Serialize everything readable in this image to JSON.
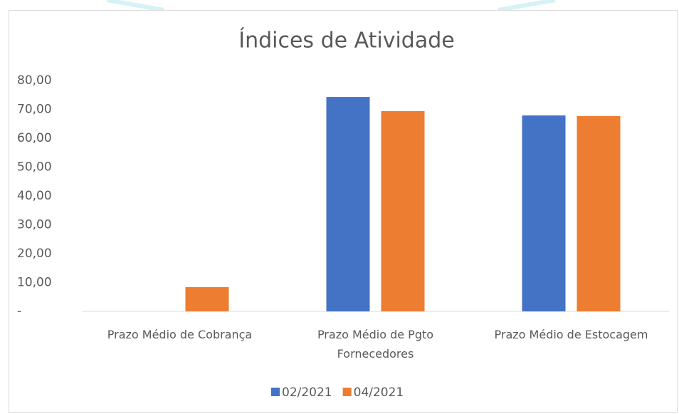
{
  "chart_data": {
    "type": "bar",
    "title": "Índices de Atividade",
    "categories": [
      "Prazo Médio de Cobrança",
      "Prazo Médio de Pgto Fornecedores",
      "Prazo Médio de Estocagem"
    ],
    "series": [
      {
        "name": "02/2021",
        "color": "#4472c4",
        "values": [
          0,
          74.3,
          67.9
        ]
      },
      {
        "name": "04/2021",
        "color": "#ed7d31",
        "values": [
          8.4,
          69.4,
          67.7
        ]
      }
    ],
    "ylim": [
      0,
      80
    ],
    "yticks": [
      {
        "value": 0,
        "label": "-"
      },
      {
        "value": 10,
        "label": "10,00"
      },
      {
        "value": 20,
        "label": "20,00"
      },
      {
        "value": 30,
        "label": "30,00"
      },
      {
        "value": 40,
        "label": "40,00"
      },
      {
        "value": 50,
        "label": "50,00"
      },
      {
        "value": 60,
        "label": "60,00"
      },
      {
        "value": 70,
        "label": "70,00"
      },
      {
        "value": 80,
        "label": "80,00"
      }
    ],
    "grid": false,
    "legend": "bottom"
  }
}
